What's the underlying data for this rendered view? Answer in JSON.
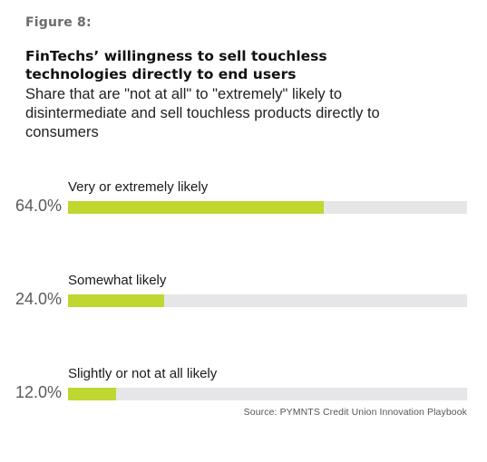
{
  "figure_label": "Figure 8:",
  "source": "Source: PYMNTS Credit Union Innovation Playbook",
  "colors": {
    "bar_fill": "#bfd730",
    "bar_track": "#e6e6e8",
    "value_text": "#5a5a5a"
  },
  "chart_data": {
    "type": "bar",
    "orientation": "horizontal",
    "title": "FinTechs’ willingness to sell touchless technologies directly to end users",
    "subtitle": "Share that are \"not at all\" to \"extremely\" likely to disintermediate and sell touchless products directly to consumers",
    "categories": [
      "Very or extremely likely",
      "Somewhat likely",
      "Slightly or not at all likely"
    ],
    "values": [
      64.0,
      24.0,
      12.0
    ],
    "value_labels": [
      "64.0%",
      "24.0%",
      "12.0%"
    ],
    "unit": "%",
    "xlim": [
      0,
      100
    ],
    "grid": false,
    "legend": "none"
  }
}
